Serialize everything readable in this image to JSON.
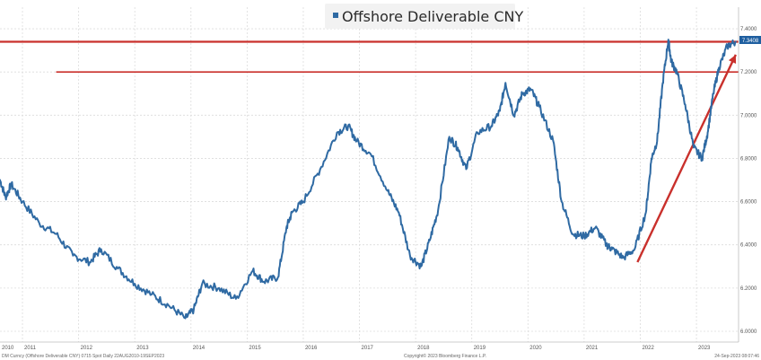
{
  "chart_data": {
    "type": "line",
    "title": "Offshore Deliverable CNY",
    "xlabel": "",
    "ylabel": "",
    "x_ticks": [
      "2010",
      "2011",
      "2012",
      "2013",
      "2014",
      "2015",
      "2016",
      "2017",
      "2018",
      "2019",
      "2020",
      "2021",
      "2022",
      "2023"
    ],
    "y_ticks": [
      6.0,
      6.2,
      6.4,
      6.6,
      6.8,
      7.0,
      7.2,
      7.4
    ],
    "y_tick_labels": [
      "6.0000",
      "6.2000",
      "6.4000",
      "6.6000",
      "6.8000",
      "7.0000",
      "7.2000",
      "7.4000"
    ],
    "ylim": [
      5.95,
      7.5
    ],
    "xlim": [
      2010.6,
      2023.75
    ],
    "grid": true,
    "legend": "top-center",
    "last_value_label": "7.3408",
    "colors": {
      "series": "#2f6aa3",
      "annotation": "#c9302c",
      "last_value_bg": "#1f5fa0"
    },
    "series": [
      {
        "name": "Offshore Deliverable CNY",
        "x": [
          2010.6,
          2010.7,
          2010.8,
          2011.0,
          2011.3,
          2011.6,
          2011.9,
          2012.2,
          2012.4,
          2012.7,
          2013.0,
          2013.3,
          2013.6,
          2013.9,
          2014.05,
          2014.2,
          2014.5,
          2014.8,
          2015.1,
          2015.3,
          2015.55,
          2015.7,
          2015.8,
          2016.0,
          2016.3,
          2016.6,
          2016.8,
          2016.95,
          2017.2,
          2017.5,
          2017.7,
          2017.9,
          2018.1,
          2018.25,
          2018.4,
          2018.6,
          2018.75,
          2018.9,
          2019.1,
          2019.35,
          2019.5,
          2019.6,
          2019.75,
          2019.9,
          2020.05,
          2020.2,
          2020.45,
          2020.6,
          2020.8,
          2021.0,
          2021.2,
          2021.4,
          2021.5,
          2021.7,
          2021.9,
          2022.1,
          2022.2,
          2022.3,
          2022.4,
          2022.5,
          2022.55,
          2022.65,
          2022.8,
          2022.95,
          2023.1,
          2023.2,
          2023.3,
          2023.4,
          2023.55,
          2023.7
        ],
        "y": [
          6.7,
          6.62,
          6.68,
          6.6,
          6.5,
          6.45,
          6.35,
          6.32,
          6.38,
          6.29,
          6.22,
          6.17,
          6.12,
          6.06,
          6.1,
          6.22,
          6.2,
          6.15,
          6.28,
          6.23,
          6.25,
          6.48,
          6.55,
          6.6,
          6.75,
          6.92,
          6.95,
          6.88,
          6.82,
          6.65,
          6.55,
          6.35,
          6.3,
          6.42,
          6.56,
          6.9,
          6.85,
          6.75,
          6.92,
          6.95,
          7.02,
          7.15,
          7.0,
          7.1,
          7.12,
          7.04,
          6.88,
          6.6,
          6.45,
          6.44,
          6.48,
          6.4,
          6.38,
          6.34,
          6.38,
          6.55,
          6.8,
          6.88,
          7.15,
          7.35,
          7.25,
          7.2,
          7.05,
          6.85,
          6.8,
          6.92,
          7.1,
          7.22,
          7.32,
          7.34
        ]
      }
    ],
    "annotations": [
      {
        "kind": "hline",
        "y": 7.34,
        "x_from": 2010.6,
        "x_to": 2023.75
      },
      {
        "kind": "hline",
        "y": 7.2,
        "x_from": 2011.6,
        "x_to": 2023.75
      },
      {
        "kind": "arrow",
        "from": [
          2021.95,
          6.32
        ],
        "to": [
          2023.7,
          7.28
        ]
      }
    ]
  },
  "footer": {
    "left": "DM Curncy (Offshore Deliverable CNY) 0715 Spot Daily 22AUG2010-19SEP2023",
    "center": "Copyright© 2023 Bloomberg Finance L.P.",
    "right": "24-Sep-2023 08:07:46"
  }
}
